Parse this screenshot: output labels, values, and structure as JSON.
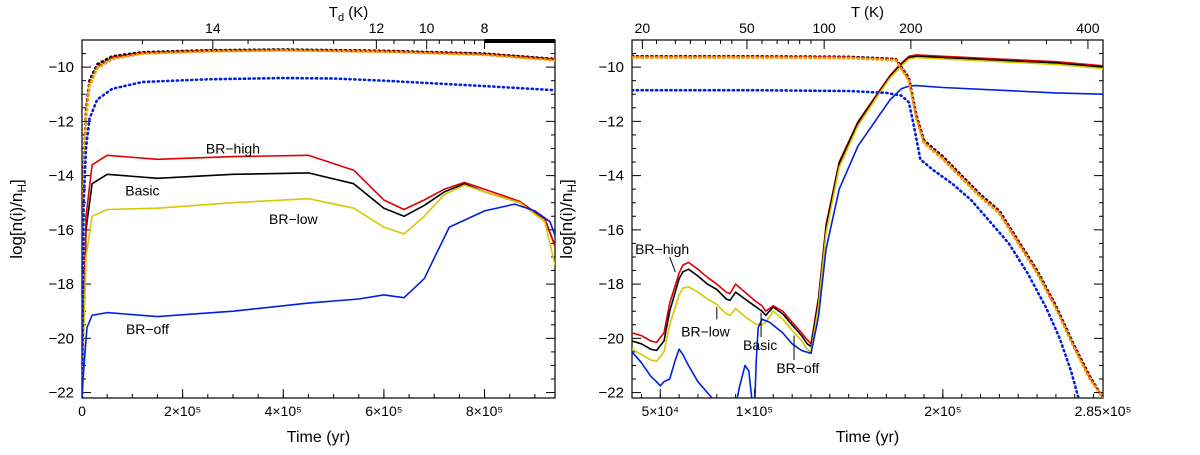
{
  "chart_data": [
    {
      "type": "line",
      "panel": "left",
      "xlabel": "Time (yr)",
      "ylabel_main": "log[n(i)/n",
      "ylabel_sub": "H",
      "ylabel_close": "]",
      "top_axis_label_main": "T",
      "top_axis_label_sub": "d",
      "top_axis_label_unit": " (K)",
      "xlim": [
        0,
        940000
      ],
      "ylim": [
        -22.2,
        -9.0
      ],
      "x_ticks": [
        {
          "value": 0,
          "label": "0"
        },
        {
          "value": 200000,
          "label": "2×10⁵"
        },
        {
          "value": 400000,
          "label": "4×10⁵"
        },
        {
          "value": 600000,
          "label": "6×10⁵"
        },
        {
          "value": 800000,
          "label": "8×10⁵"
        }
      ],
      "y_ticks": [
        -10,
        -12,
        -14,
        -16,
        -18,
        -20,
        -22
      ],
      "top_ticks": [
        {
          "x": 260000,
          "label": "14"
        },
        {
          "x": 585000,
          "label": "12"
        },
        {
          "x": 685000,
          "label": "10"
        },
        {
          "x": 800000,
          "label": "8"
        }
      ],
      "series": [
        {
          "name": "Basic (solid)",
          "color": "#000000",
          "dash": "solid",
          "x": [
            0,
            8000,
            20000,
            50000,
            150000,
            300000,
            450000,
            540000,
            600000,
            640000,
            680000,
            720000,
            760000,
            800000,
            870000,
            920000,
            940000
          ],
          "y": [
            -22.2,
            -16.0,
            -14.3,
            -13.95,
            -14.1,
            -13.95,
            -13.9,
            -14.3,
            -15.2,
            -15.5,
            -15.1,
            -14.6,
            -14.3,
            -14.6,
            -15.0,
            -15.6,
            -16.6
          ]
        },
        {
          "name": "BR-high (solid)",
          "color": "#e00000",
          "dash": "solid",
          "x": [
            0,
            8000,
            20000,
            50000,
            150000,
            300000,
            450000,
            540000,
            600000,
            640000,
            680000,
            720000,
            760000,
            800000,
            870000,
            920000,
            940000
          ],
          "y": [
            -22.2,
            -15.5,
            -13.6,
            -13.25,
            -13.4,
            -13.3,
            -13.25,
            -13.8,
            -14.9,
            -15.25,
            -14.9,
            -14.5,
            -14.25,
            -14.5,
            -14.95,
            -15.6,
            -16.6
          ]
        },
        {
          "name": "BR-low (solid)",
          "color": "#d8c800",
          "dash": "solid",
          "x": [
            0,
            8000,
            20000,
            50000,
            150000,
            300000,
            450000,
            540000,
            600000,
            640000,
            680000,
            720000,
            760000,
            800000,
            870000,
            920000,
            940000
          ],
          "y": [
            -22.2,
            -17.0,
            -15.5,
            -15.25,
            -15.2,
            -15.0,
            -14.85,
            -15.2,
            -15.9,
            -16.15,
            -15.5,
            -14.7,
            -14.35,
            -14.6,
            -15.0,
            -15.7,
            -17.3
          ]
        },
        {
          "name": "BR-off (solid)",
          "color": "#0020e0",
          "dash": "solid",
          "x": [
            0,
            4000,
            10000,
            20000,
            50000,
            150000,
            300000,
            450000,
            550000,
            600000,
            640000,
            680000,
            730000,
            800000,
            860000,
            900000,
            930000,
            940000
          ],
          "y": [
            -22.2,
            -21.0,
            -19.6,
            -19.15,
            -19.05,
            -19.2,
            -19.0,
            -18.7,
            -18.55,
            -18.4,
            -18.5,
            -17.8,
            -15.9,
            -15.3,
            -15.05,
            -15.3,
            -15.7,
            -16.2
          ]
        },
        {
          "name": "Basic (dotted)",
          "color": "#000000",
          "dash": "dotted",
          "x": [
            0,
            3000,
            8000,
            15000,
            30000,
            60000,
            120000,
            250000,
            400000,
            600000,
            800000,
            940000
          ],
          "y": [
            -22.2,
            -14.0,
            -11.6,
            -10.5,
            -9.9,
            -9.6,
            -9.45,
            -9.38,
            -9.35,
            -9.4,
            -9.5,
            -9.7
          ]
        },
        {
          "name": "BR-high (dotted)",
          "color": "#e00000",
          "dash": "dotted",
          "x": [
            0,
            3000,
            8000,
            15000,
            30000,
            60000,
            120000,
            250000,
            400000,
            600000,
            800000,
            940000
          ],
          "y": [
            -22.2,
            -14.2,
            -11.7,
            -10.6,
            -10.0,
            -9.65,
            -9.48,
            -9.4,
            -9.37,
            -9.42,
            -9.52,
            -9.72
          ]
        },
        {
          "name": "BR-low (dotted)",
          "color": "#e8a000",
          "dash": "dotted",
          "x": [
            0,
            3000,
            8000,
            15000,
            30000,
            60000,
            120000,
            250000,
            400000,
            600000,
            800000,
            940000
          ],
          "y": [
            -22.2,
            -14.4,
            -11.9,
            -10.7,
            -10.05,
            -9.7,
            -9.5,
            -9.42,
            -9.38,
            -9.43,
            -9.55,
            -9.75
          ]
        },
        {
          "name": "BR-off (dotted)",
          "color": "#0020e0",
          "dash": "dotted",
          "x": [
            0,
            3000,
            8000,
            15000,
            30000,
            60000,
            120000,
            250000,
            400000,
            500000,
            600000,
            700000,
            800000,
            940000
          ],
          "y": [
            -22.2,
            -15.2,
            -13.0,
            -11.9,
            -11.2,
            -10.8,
            -10.55,
            -10.45,
            -10.4,
            -10.42,
            -10.5,
            -10.6,
            -10.7,
            -10.85
          ]
        }
      ],
      "annotations": [
        {
          "text": "BR−high",
          "x": 300000,
          "y": -13.0
        },
        {
          "text": "Basic",
          "x": 120000,
          "y": -14.55
        },
        {
          "text": "BR−low",
          "x": 420000,
          "y": -15.6
        },
        {
          "text": "BR−off",
          "x": 130000,
          "y": -19.65
        }
      ]
    },
    {
      "type": "line",
      "panel": "right",
      "xlabel": "Time (yr)",
      "ylabel_main": "log[n(i)/n",
      "ylabel_sub": "H",
      "ylabel_close": "]",
      "top_axis_label": "T (K)",
      "xlim": [
        35000,
        285000
      ],
      "ylim": [
        -22.2,
        -9.0
      ],
      "x_ticks": [
        {
          "value": 50000,
          "label": "5×10⁴"
        },
        {
          "value": 100000,
          "label": "1×10⁵"
        },
        {
          "value": 200000,
          "label": "2×10⁵"
        },
        {
          "value": 285000,
          "label": "2.85×10⁵"
        }
      ],
      "y_ticks": [
        -10,
        -12,
        -14,
        -16,
        -18,
        -20,
        -22
      ],
      "top_ticks": [
        {
          "x": 40500,
          "label": "20"
        },
        {
          "x": 96000,
          "label": "50"
        },
        {
          "x": 137000,
          "label": "100"
        },
        {
          "x": 183000,
          "label": "200"
        },
        {
          "x": 277000,
          "label": "400"
        }
      ],
      "series": [
        {
          "name": "BR-high (solid)",
          "color": "#e00000",
          "dash": "solid",
          "x": [
            35000,
            40000,
            45000,
            48000,
            52000,
            55000,
            60000,
            62000,
            65000,
            70000,
            75000,
            80000,
            85000,
            87000,
            90000,
            95000,
            100000,
            102000,
            104000,
            106000,
            110000,
            115000,
            120000,
            125000,
            128000,
            130000,
            134000,
            138000,
            145000,
            155000,
            165000,
            172000,
            178000,
            182000,
            186000,
            200000,
            230000,
            260000,
            285000
          ],
          "y": [
            -19.8,
            -19.9,
            -20.1,
            -20.15,
            -19.8,
            -18.7,
            -17.6,
            -17.3,
            -17.2,
            -17.45,
            -17.75,
            -18.0,
            -18.3,
            -18.35,
            -18.0,
            -18.3,
            -18.6,
            -18.7,
            -18.8,
            -19.0,
            -18.8,
            -19.0,
            -19.4,
            -19.8,
            -20.05,
            -20.2,
            -18.5,
            -15.8,
            -13.5,
            -12.0,
            -11.0,
            -10.3,
            -9.85,
            -9.6,
            -9.55,
            -9.6,
            -9.7,
            -9.8,
            -9.95
          ]
        },
        {
          "name": "Basic (solid)",
          "color": "#000000",
          "dash": "solid",
          "x": [
            35000,
            40000,
            45000,
            48000,
            52000,
            55000,
            60000,
            62000,
            65000,
            70000,
            75000,
            80000,
            85000,
            87000,
            90000,
            95000,
            100000,
            102000,
            104000,
            106000,
            110000,
            115000,
            120000,
            125000,
            128000,
            130000,
            134000,
            138000,
            145000,
            155000,
            165000,
            172000,
            178000,
            182000,
            186000,
            200000,
            230000,
            260000,
            285000
          ],
          "y": [
            -20.1,
            -20.2,
            -20.4,
            -20.45,
            -20.1,
            -19.0,
            -17.8,
            -17.55,
            -17.45,
            -17.7,
            -18.0,
            -18.2,
            -18.55,
            -18.6,
            -18.3,
            -18.55,
            -18.8,
            -18.9,
            -19.0,
            -19.15,
            -18.85,
            -19.1,
            -19.5,
            -19.9,
            -20.2,
            -20.3,
            -18.6,
            -15.9,
            -13.55,
            -12.05,
            -11.05,
            -10.35,
            -9.9,
            -9.65,
            -9.6,
            -9.65,
            -9.75,
            -9.85,
            -10.0
          ]
        },
        {
          "name": "BR-low (solid)",
          "color": "#d8c800",
          "dash": "solid",
          "x": [
            35000,
            40000,
            45000,
            48000,
            52000,
            55000,
            60000,
            62000,
            65000,
            70000,
            75000,
            80000,
            85000,
            87000,
            90000,
            95000,
            100000,
            102000,
            104000,
            106000,
            110000,
            115000,
            120000,
            125000,
            128000,
            130000,
            134000,
            138000,
            145000,
            155000,
            165000,
            172000,
            178000,
            182000,
            186000,
            200000,
            230000,
            260000,
            285000
          ],
          "y": [
            -20.4,
            -20.6,
            -20.8,
            -20.85,
            -20.5,
            -19.5,
            -18.4,
            -18.15,
            -18.1,
            -18.3,
            -18.55,
            -18.75,
            -19.1,
            -19.15,
            -18.9,
            -19.2,
            -19.45,
            -19.5,
            -19.5,
            -19.4,
            -19.0,
            -19.3,
            -19.7,
            -20.1,
            -20.4,
            -20.5,
            -18.8,
            -16.1,
            -13.7,
            -12.15,
            -11.1,
            -10.4,
            -9.95,
            -9.7,
            -9.65,
            -9.7,
            -9.8,
            -9.9,
            -10.05
          ]
        },
        {
          "name": "BR-off (solid)",
          "color": "#0020e0",
          "dash": "solid",
          "x": [
            35000,
            40000,
            45000,
            48000,
            50000,
            52000,
            55000,
            58000,
            60000,
            62000,
            65000,
            70000,
            75000,
            80000,
            85000,
            90000,
            92000,
            95000,
            97000,
            99000,
            100000,
            101000,
            102000,
            104000,
            108000,
            115000,
            120000,
            125000,
            130000,
            134000,
            138000,
            145000,
            155000,
            165000,
            172000,
            178000,
            182000,
            186000,
            200000,
            230000,
            260000,
            285000
          ],
          "y": [
            -20.5,
            -20.9,
            -21.4,
            -21.6,
            -21.75,
            -21.6,
            -21.5,
            -20.8,
            -20.4,
            -20.6,
            -21.0,
            -21.6,
            -22.0,
            -22.4,
            -22.6,
            -22.5,
            -21.8,
            -21.0,
            -21.2,
            -22.5,
            -22.6,
            -20.8,
            -19.6,
            -19.3,
            -19.4,
            -19.8,
            -20.2,
            -20.45,
            -20.55,
            -19.2,
            -16.7,
            -14.5,
            -12.9,
            -11.9,
            -11.2,
            -10.8,
            -10.7,
            -10.68,
            -10.75,
            -10.85,
            -10.95,
            -11.0
          ]
        },
        {
          "name": "Basic (dotted)",
          "color": "#000000",
          "dash": "dotted",
          "x": [
            35000,
            100000,
            150000,
            175000,
            182000,
            186000,
            190000,
            195000,
            200000,
            210000,
            220000,
            230000,
            240000,
            250000,
            260000,
            270000,
            278000,
            285000
          ],
          "y": [
            -9.6,
            -9.6,
            -9.62,
            -9.7,
            -10.4,
            -11.8,
            -12.7,
            -13.0,
            -13.3,
            -14.0,
            -14.7,
            -15.3,
            -16.4,
            -17.5,
            -18.8,
            -20.3,
            -21.4,
            -22.2
          ]
        },
        {
          "name": "BR-high (dotted)",
          "color": "#e00000",
          "dash": "dotted",
          "x": [
            35000,
            100000,
            150000,
            175000,
            182000,
            186000,
            190000,
            195000,
            200000,
            210000,
            220000,
            230000,
            240000,
            250000,
            260000,
            270000,
            278000,
            285000
          ],
          "y": [
            -9.62,
            -9.62,
            -9.64,
            -9.72,
            -10.45,
            -11.85,
            -12.75,
            -13.05,
            -13.35,
            -14.05,
            -14.75,
            -15.35,
            -16.45,
            -17.55,
            -18.85,
            -20.35,
            -21.45,
            -22.2
          ]
        },
        {
          "name": "BR-low (dotted)",
          "color": "#e8a000",
          "dash": "dotted",
          "x": [
            35000,
            100000,
            150000,
            175000,
            182000,
            186000,
            190000,
            195000,
            200000,
            210000,
            220000,
            230000,
            240000,
            250000,
            260000,
            270000,
            278000,
            285000
          ],
          "y": [
            -9.65,
            -9.65,
            -9.67,
            -9.75,
            -10.5,
            -11.9,
            -12.8,
            -13.1,
            -13.4,
            -14.1,
            -14.8,
            -15.4,
            -16.5,
            -17.6,
            -18.9,
            -20.4,
            -21.5,
            -22.2
          ]
        },
        {
          "name": "BR-off (dotted)",
          "color": "#0020e0",
          "dash": "dotted",
          "x": [
            35000,
            100000,
            150000,
            170000,
            178000,
            182000,
            185000,
            188000,
            195000,
            205000,
            215000,
            225000,
            235000,
            245000,
            255000,
            262000,
            268000,
            272000
          ],
          "y": [
            -10.85,
            -10.85,
            -10.88,
            -10.95,
            -11.05,
            -11.3,
            -12.3,
            -13.4,
            -13.8,
            -14.3,
            -14.9,
            -15.7,
            -16.5,
            -17.6,
            -18.9,
            -20.0,
            -21.2,
            -22.2
          ]
        }
      ],
      "annotations": [
        {
          "text": "BR−high",
          "x": 51000,
          "y": -16.7,
          "lx1": 55000,
          "ly1": -17.0,
          "lx2": 58000,
          "ly2": -17.55
        },
        {
          "text": "BR−low",
          "x": 74000,
          "y": -19.75,
          "lx1": 80000,
          "ly1": -19.3,
          "lx2": 80000,
          "ly2": -18.85
        },
        {
          "text": "Basic",
          "x": 103000,
          "y": -20.25,
          "lx1": 103500,
          "ly1": -19.95,
          "lx2": 103500,
          "ly2": -19.05
        },
        {
          "text": "BR−off",
          "x": 123000,
          "y": -21.1,
          "lx1": 121000,
          "ly1": -20.8,
          "lx2": 121000,
          "ly2": -19.9
        }
      ]
    }
  ]
}
